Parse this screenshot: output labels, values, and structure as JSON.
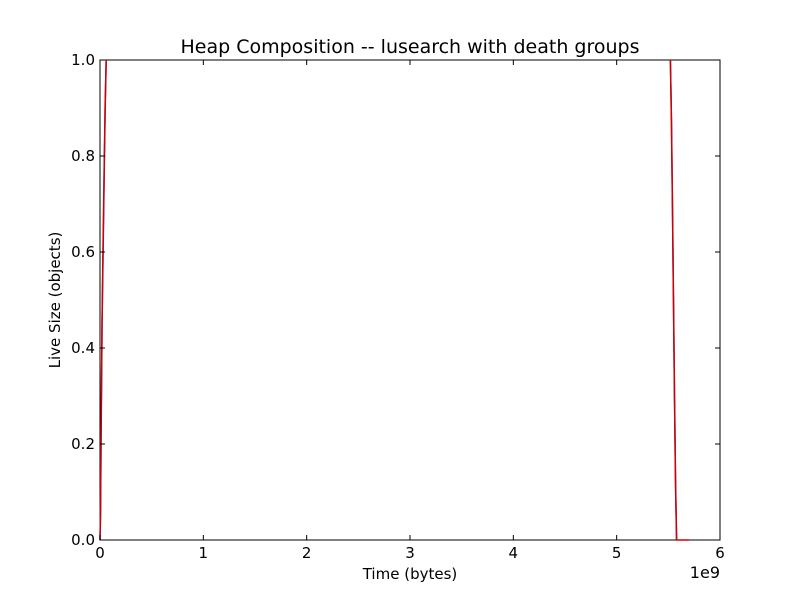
{
  "chart_data": {
    "type": "line",
    "title": "Heap Composition -- lusearch with death groups",
    "xlabel": "Time (bytes)",
    "ylabel": "Live Size (objects)",
    "x_offset_text": "1e9",
    "xlim": [
      0,
      6
    ],
    "ylim": [
      0,
      1
    ],
    "x_ticks": [
      0,
      1,
      2,
      3,
      4,
      5,
      6
    ],
    "x_tick_labels": [
      "0",
      "1",
      "2",
      "3",
      "4",
      "5",
      "6"
    ],
    "y_ticks": [
      0,
      0.2,
      0.4,
      0.6,
      0.8,
      1.0
    ],
    "y_tick_labels": [
      "0.0",
      "0.2",
      "0.4",
      "0.6",
      "0.8",
      "1.0"
    ],
    "grid": false,
    "series": [
      {
        "color": "#1f3fbf",
        "x": [
          0.0,
          0.005,
          0.01,
          0.015,
          0.02,
          0.03,
          0.04,
          0.05,
          0.06
        ],
        "y": [
          0.0,
          0.05,
          0.2,
          0.32,
          0.45,
          0.6,
          0.75,
          0.9,
          1.0
        ]
      },
      {
        "color": "#1f3fbf",
        "x": [
          5.52,
          5.53,
          5.54,
          5.55,
          5.56,
          5.57,
          5.58
        ],
        "y": [
          1.0,
          0.88,
          0.7,
          0.5,
          0.3,
          0.12,
          0.0
        ]
      },
      {
        "color": "#d00000",
        "x": [
          0.0,
          0.005,
          0.01,
          0.015,
          0.02,
          0.03,
          0.04,
          0.05,
          0.06
        ],
        "y": [
          0.0,
          0.06,
          0.22,
          0.34,
          0.46,
          0.62,
          0.77,
          0.91,
          1.0
        ]
      },
      {
        "color": "#d00000",
        "x": [
          5.52,
          5.53,
          5.54,
          5.55,
          5.56,
          5.57,
          5.58,
          5.6,
          5.65,
          5.7
        ],
        "y": [
          1.0,
          0.87,
          0.69,
          0.49,
          0.29,
          0.11,
          0.0,
          0.0,
          0.0,
          0.0
        ]
      }
    ]
  }
}
